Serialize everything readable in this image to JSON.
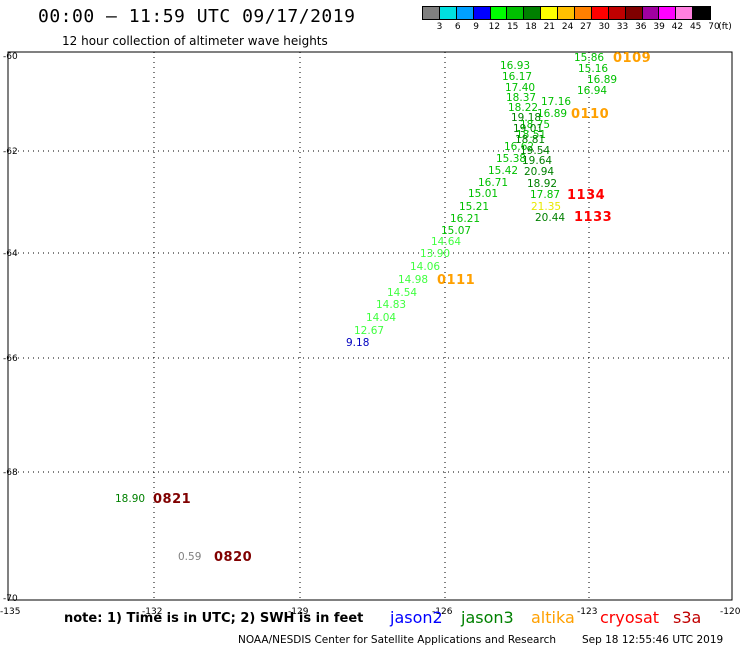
{
  "header": {
    "title": "00:00 – 11:59 UTC 09/17/2019",
    "subtitle": "12 hour collection of altimeter wave heights"
  },
  "legend": {
    "colors": [
      "#808080",
      "#00e0e0",
      "#00a0ff",
      "#0000ff",
      "#00ff00",
      "#00c000",
      "#008000",
      "#ffff00",
      "#ffc000",
      "#ff8000",
      "#ff0000",
      "#c00000",
      "#800000",
      "#a000a0",
      "#ff00ff",
      "#ff80e0",
      "#000000"
    ],
    "labels": [
      "3",
      "6",
      "9",
      "12",
      "15",
      "18",
      "21",
      "24",
      "27",
      "30",
      "33",
      "36",
      "39",
      "42",
      "45",
      "70",
      "(ft)"
    ]
  },
  "axes": {
    "lat_labels": [
      "-60",
      "-62",
      "-64",
      "-66",
      "-68",
      "-70"
    ],
    "lon_labels": [
      "-135",
      "-132",
      "-129",
      "-126",
      "-123",
      "-120"
    ]
  },
  "observations": [
    {
      "value": "15.86",
      "color": "#00c000"
    },
    {
      "value": "15.16",
      "color": "#00c000"
    },
    {
      "value": "16.93",
      "color": "#00c000"
    },
    {
      "value": "16.17",
      "color": "#00c000"
    },
    {
      "value": "16.89",
      "color": "#00c000"
    },
    {
      "value": "17.40",
      "color": "#00c000"
    },
    {
      "value": "16.94",
      "color": "#00c000"
    },
    {
      "value": "18.37",
      "color": "#00c000"
    },
    {
      "value": "17.16",
      "color": "#00c000"
    },
    {
      "value": "18.22",
      "color": "#00c000"
    },
    {
      "value": "16.89",
      "color": "#00c000"
    },
    {
      "value": "19.18",
      "color": "#008000"
    },
    {
      "value": "18.75",
      "color": "#00c000"
    },
    {
      "value": "19.01",
      "color": "#008000"
    },
    {
      "value": "18.51",
      "color": "#00c000"
    },
    {
      "value": "18.81",
      "color": "#008000"
    },
    {
      "value": "16.62",
      "color": "#00c000"
    },
    {
      "value": "19.54",
      "color": "#008000"
    },
    {
      "value": "15.38",
      "color": "#00c000"
    },
    {
      "value": "19.64",
      "color": "#008000"
    },
    {
      "value": "15.42",
      "color": "#00c000"
    },
    {
      "value": "20.94",
      "color": "#008000"
    },
    {
      "value": "16.71",
      "color": "#00c000"
    },
    {
      "value": "18.92",
      "color": "#008000"
    },
    {
      "value": "15.01",
      "color": "#00c000"
    },
    {
      "value": "17.87",
      "color": "#00c000"
    },
    {
      "value": "15.21",
      "color": "#00c000"
    },
    {
      "value": "21.35",
      "color": "#e8e800"
    },
    {
      "value": "16.21",
      "color": "#00c000"
    },
    {
      "value": "20.44",
      "color": "#008000"
    },
    {
      "value": "15.07",
      "color": "#00c000"
    },
    {
      "value": "14.64",
      "color": "#40ff40"
    },
    {
      "value": "13.90",
      "color": "#40ff40"
    },
    {
      "value": "14.06",
      "color": "#40ff40"
    },
    {
      "value": "14.98",
      "color": "#40ff40"
    },
    {
      "value": "14.54",
      "color": "#40ff40"
    },
    {
      "value": "14.83",
      "color": "#40ff40"
    },
    {
      "value": "14.04",
      "color": "#40ff40"
    },
    {
      "value": "12.67",
      "color": "#40ff40"
    },
    {
      "value": "9.18",
      "color": "#0000c0"
    },
    {
      "value": "18.90",
      "color": "#008000"
    },
    {
      "value": "0.59",
      "color": "#808080"
    }
  ],
  "time_labels": [
    {
      "value": "0109",
      "color": "#ffa000"
    },
    {
      "value": "0110",
      "color": "#ffa000"
    },
    {
      "value": "1134",
      "color": "#ff0000"
    },
    {
      "value": "1133",
      "color": "#ff0000"
    },
    {
      "value": "0111",
      "color": "#ffa000"
    },
    {
      "value": "0821",
      "color": "#800000"
    },
    {
      "value": "0820",
      "color": "#800000"
    }
  ],
  "note": "note: 1) Time is in UTC; 2) SWH is in feet",
  "satellites": [
    {
      "name": "jason2",
      "color": "#0000ff"
    },
    {
      "name": "jason3",
      "color": "#008000"
    },
    {
      "name": "altika",
      "color": "#ffa000"
    },
    {
      "name": "cryosat",
      "color": "#ff0000"
    },
    {
      "name": "s3a",
      "color": "#c00000"
    }
  ],
  "footer": {
    "credit": "NOAA/NESDIS Center for Satellite Applications and Research",
    "generated": "Sep 18 12:55:46 UTC 2019"
  }
}
